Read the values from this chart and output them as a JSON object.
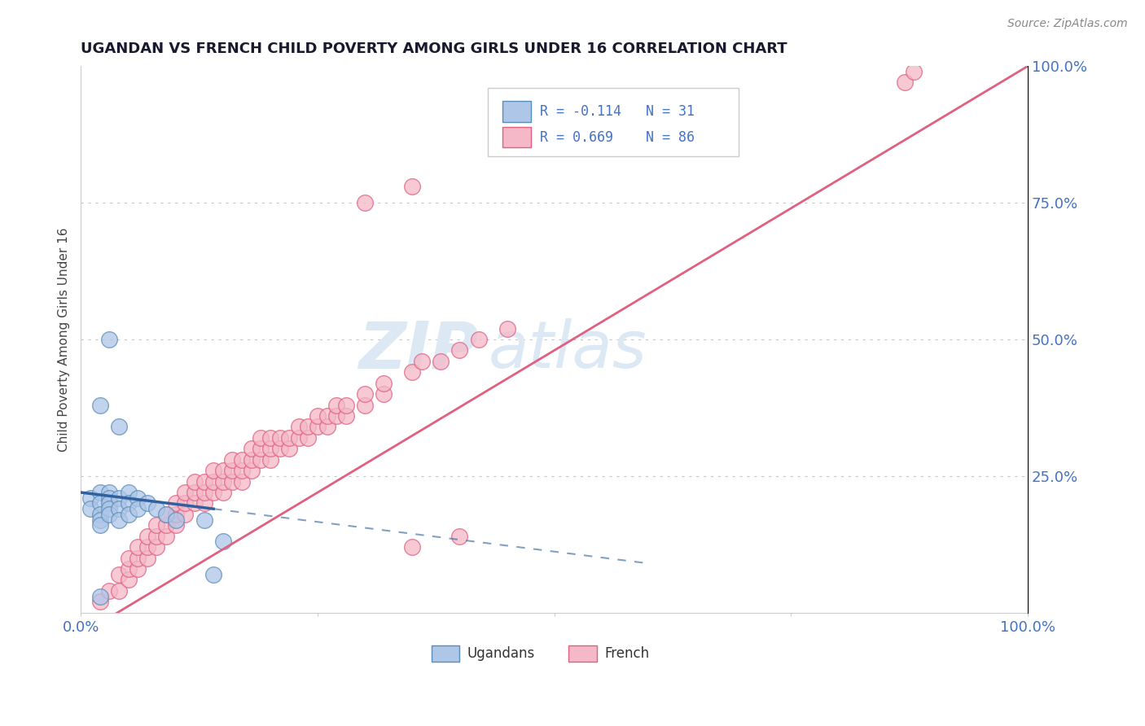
{
  "title": "UGANDAN VS FRENCH CHILD POVERTY AMONG GIRLS UNDER 16 CORRELATION CHART",
  "source": "Source: ZipAtlas.com",
  "ylabel": "Child Poverty Among Girls Under 16",
  "ugandan_color": "#aec6e8",
  "french_color": "#f4b8c8",
  "ugandan_edge_color": "#5b8db8",
  "french_edge_color": "#e06080",
  "ugandan_line_color": "#3060a0",
  "french_line_color": "#e06080",
  "watermark_color": "#dde8f5",
  "blue_text_color": "#4472c4",
  "title_color": "#1a1a2e",
  "ugandan_points": [
    [
      0.01,
      0.21
    ],
    [
      0.01,
      0.19
    ],
    [
      0.02,
      0.22
    ],
    [
      0.02,
      0.2
    ],
    [
      0.02,
      0.18
    ],
    [
      0.02,
      0.17
    ],
    [
      0.02,
      0.16
    ],
    [
      0.03,
      0.22
    ],
    [
      0.03,
      0.21
    ],
    [
      0.03,
      0.2
    ],
    [
      0.03,
      0.19
    ],
    [
      0.03,
      0.18
    ],
    [
      0.04,
      0.21
    ],
    [
      0.04,
      0.19
    ],
    [
      0.04,
      0.17
    ],
    [
      0.05,
      0.22
    ],
    [
      0.05,
      0.2
    ],
    [
      0.05,
      0.18
    ],
    [
      0.06,
      0.21
    ],
    [
      0.06,
      0.19
    ],
    [
      0.07,
      0.2
    ],
    [
      0.08,
      0.19
    ],
    [
      0.09,
      0.18
    ],
    [
      0.1,
      0.17
    ],
    [
      0.03,
      0.5
    ],
    [
      0.02,
      0.38
    ],
    [
      0.04,
      0.34
    ],
    [
      0.13,
      0.17
    ],
    [
      0.15,
      0.13
    ],
    [
      0.14,
      0.07
    ],
    [
      0.02,
      0.03
    ]
  ],
  "french_points": [
    [
      0.02,
      0.02
    ],
    [
      0.03,
      0.04
    ],
    [
      0.04,
      0.04
    ],
    [
      0.04,
      0.07
    ],
    [
      0.05,
      0.06
    ],
    [
      0.05,
      0.08
    ],
    [
      0.05,
      0.1
    ],
    [
      0.06,
      0.08
    ],
    [
      0.06,
      0.1
    ],
    [
      0.06,
      0.12
    ],
    [
      0.07,
      0.1
    ],
    [
      0.07,
      0.12
    ],
    [
      0.07,
      0.14
    ],
    [
      0.08,
      0.12
    ],
    [
      0.08,
      0.14
    ],
    [
      0.08,
      0.16
    ],
    [
      0.09,
      0.14
    ],
    [
      0.09,
      0.16
    ],
    [
      0.09,
      0.18
    ],
    [
      0.1,
      0.16
    ],
    [
      0.1,
      0.18
    ],
    [
      0.1,
      0.2
    ],
    [
      0.11,
      0.18
    ],
    [
      0.11,
      0.2
    ],
    [
      0.11,
      0.22
    ],
    [
      0.12,
      0.2
    ],
    [
      0.12,
      0.22
    ],
    [
      0.12,
      0.24
    ],
    [
      0.13,
      0.2
    ],
    [
      0.13,
      0.22
    ],
    [
      0.13,
      0.24
    ],
    [
      0.14,
      0.22
    ],
    [
      0.14,
      0.24
    ],
    [
      0.14,
      0.26
    ],
    [
      0.15,
      0.22
    ],
    [
      0.15,
      0.24
    ],
    [
      0.15,
      0.26
    ],
    [
      0.16,
      0.24
    ],
    [
      0.16,
      0.26
    ],
    [
      0.16,
      0.28
    ],
    [
      0.17,
      0.24
    ],
    [
      0.17,
      0.26
    ],
    [
      0.17,
      0.28
    ],
    [
      0.18,
      0.26
    ],
    [
      0.18,
      0.28
    ],
    [
      0.18,
      0.3
    ],
    [
      0.19,
      0.28
    ],
    [
      0.19,
      0.3
    ],
    [
      0.19,
      0.32
    ],
    [
      0.2,
      0.28
    ],
    [
      0.2,
      0.3
    ],
    [
      0.2,
      0.32
    ],
    [
      0.21,
      0.3
    ],
    [
      0.21,
      0.32
    ],
    [
      0.22,
      0.3
    ],
    [
      0.22,
      0.32
    ],
    [
      0.23,
      0.32
    ],
    [
      0.23,
      0.34
    ],
    [
      0.24,
      0.32
    ],
    [
      0.24,
      0.34
    ],
    [
      0.25,
      0.34
    ],
    [
      0.25,
      0.36
    ],
    [
      0.26,
      0.34
    ],
    [
      0.26,
      0.36
    ],
    [
      0.27,
      0.36
    ],
    [
      0.27,
      0.38
    ],
    [
      0.28,
      0.36
    ],
    [
      0.28,
      0.38
    ],
    [
      0.3,
      0.38
    ],
    [
      0.3,
      0.4
    ],
    [
      0.32,
      0.4
    ],
    [
      0.32,
      0.42
    ],
    [
      0.35,
      0.44
    ],
    [
      0.36,
      0.46
    ],
    [
      0.38,
      0.46
    ],
    [
      0.4,
      0.48
    ],
    [
      0.42,
      0.5
    ],
    [
      0.45,
      0.52
    ],
    [
      0.35,
      0.78
    ],
    [
      0.3,
      0.75
    ],
    [
      0.87,
      0.97
    ],
    [
      0.88,
      0.99
    ],
    [
      0.35,
      0.12
    ],
    [
      0.4,
      0.14
    ]
  ],
  "french_line": [
    0.0,
    -0.04,
    1.0,
    1.0
  ],
  "ugandan_line_solid": [
    0.0,
    0.22,
    0.14,
    0.19
  ],
  "ugandan_line_dash": [
    0.14,
    0.19,
    0.6,
    0.09
  ]
}
